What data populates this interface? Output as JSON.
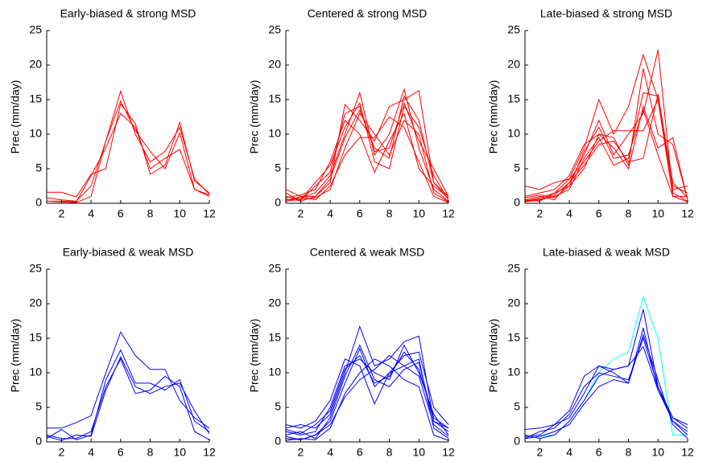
{
  "chart_data": [
    {
      "type": "line",
      "title": "Early-biased & strong MSD",
      "y_label": "Prec (mm/day)",
      "x": [
        1,
        2,
        3,
        4,
        5,
        6,
        7,
        8,
        9,
        10,
        11,
        12
      ],
      "xlim": [
        1,
        12
      ],
      "ylim": [
        0,
        25
      ],
      "xticks": [
        2,
        4,
        6,
        8,
        10,
        12
      ],
      "yticks": [
        0,
        5,
        10,
        15,
        20,
        25
      ],
      "series": [
        {
          "color": "#ff0000",
          "values": [
            1.6,
            1.6,
            0.9,
            4.2,
            5.0,
            14.4,
            11.5,
            4.2,
            5.5,
            11.7,
            3.2,
            1.5
          ]
        },
        {
          "color": "#ff0000",
          "values": [
            0.8,
            0.5,
            0.3,
            2.5,
            9.0,
            16.2,
            10.0,
            6.0,
            7.5,
            11.0,
            3.5,
            1.3
          ]
        },
        {
          "color": "#ff0000",
          "values": [
            0.3,
            0.2,
            0.1,
            1.0,
            9.0,
            14.8,
            10.5,
            7.5,
            5.0,
            10.2,
            2.0,
            1.0
          ]
        },
        {
          "color": "#ff0000",
          "values": [
            0.3,
            0.3,
            0.2,
            4.0,
            8.0,
            13.0,
            11.0,
            5.0,
            6.5,
            7.8,
            2.0,
            1.2
          ]
        }
      ]
    },
    {
      "type": "line",
      "title": "Centered & strong MSD",
      "y_label": "Prec (mm/day)",
      "x": [
        1,
        2,
        3,
        4,
        5,
        6,
        7,
        8,
        9,
        10,
        11,
        12
      ],
      "xlim": [
        1,
        12
      ],
      "ylim": [
        0,
        25
      ],
      "xticks": [
        2,
        4,
        6,
        8,
        10,
        12
      ],
      "yticks": [
        0,
        5,
        10,
        15,
        20,
        25
      ],
      "series": [
        {
          "color": "#ff0000",
          "values": [
            2.0,
            1.0,
            1.0,
            3.0,
            14.3,
            12.0,
            9.0,
            14.0,
            15.0,
            16.3,
            3.0,
            1.0
          ]
        },
        {
          "color": "#ff0000",
          "values": [
            0.5,
            0.8,
            1.5,
            4.0,
            10.0,
            16.0,
            7.0,
            10.0,
            16.5,
            8.0,
            2.0,
            0.3
          ]
        },
        {
          "color": "#ff0000",
          "values": [
            1.0,
            0.5,
            3.0,
            5.5,
            11.0,
            14.5,
            6.0,
            5.0,
            14.0,
            11.0,
            4.0,
            0.5
          ]
        },
        {
          "color": "#ff0000",
          "values": [
            0.3,
            0.6,
            0.8,
            2.0,
            8.0,
            13.0,
            10.0,
            7.0,
            12.0,
            10.0,
            1.5,
            0.2
          ]
        },
        {
          "color": "#ff0000",
          "values": [
            0.8,
            1.2,
            2.0,
            6.0,
            12.0,
            10.0,
            4.5,
            9.0,
            13.0,
            5.0,
            2.5,
            0.8
          ]
        },
        {
          "color": "#ff0000",
          "values": [
            1.5,
            0.3,
            1.0,
            3.5,
            9.5,
            13.5,
            8.0,
            6.5,
            15.5,
            12.0,
            3.0,
            0.6
          ]
        },
        {
          "color": "#ff0000",
          "values": [
            0.2,
            1.0,
            0.5,
            2.5,
            7.0,
            9.5,
            9.5,
            12.5,
            11.0,
            6.0,
            1.0,
            0.1
          ]
        },
        {
          "color": "#ff0000",
          "values": [
            0.6,
            0.4,
            2.5,
            4.5,
            13.0,
            14.0,
            7.5,
            8.0,
            14.5,
            9.0,
            5.0,
            1.0
          ]
        }
      ]
    },
    {
      "type": "line",
      "title": "Late-biased & strong MSD",
      "y_label": "Prec (mm/day)",
      "x": [
        1,
        2,
        3,
        4,
        5,
        6,
        7,
        8,
        9,
        10,
        11,
        12
      ],
      "xlim": [
        1,
        12
      ],
      "ylim": [
        0,
        25
      ],
      "xticks": [
        2,
        4,
        6,
        8,
        10,
        12
      ],
      "yticks": [
        0,
        5,
        10,
        15,
        20,
        25
      ],
      "series": [
        {
          "color": "#ff0000",
          "values": [
            2.5,
            2.0,
            3.0,
            3.5,
            8.0,
            15.0,
            10.0,
            14.0,
            21.5,
            15.0,
            1.0,
            1.0
          ]
        },
        {
          "color": "#ff0000",
          "values": [
            0.3,
            0.8,
            1.5,
            2.5,
            5.0,
            10.0,
            9.5,
            5.5,
            19.5,
            10.0,
            8.5,
            0.5
          ]
        },
        {
          "color": "#ff0000",
          "values": [
            0.5,
            1.0,
            0.5,
            3.0,
            7.0,
            12.0,
            7.0,
            10.0,
            13.0,
            22.2,
            1.5,
            0.3
          ]
        },
        {
          "color": "#ff0000",
          "values": [
            0.2,
            0.5,
            1.0,
            2.0,
            6.5,
            9.5,
            5.5,
            6.5,
            16.0,
            15.5,
            3.0,
            0.8
          ]
        },
        {
          "color": "#ff0000",
          "values": [
            1.0,
            1.5,
            2.0,
            4.0,
            8.5,
            10.0,
            8.0,
            5.0,
            14.0,
            8.0,
            9.5,
            0.5
          ]
        },
        {
          "color": "#ff0000",
          "values": [
            0.5,
            0.3,
            1.5,
            3.5,
            6.0,
            9.0,
            10.5,
            10.5,
            10.5,
            15.0,
            2.0,
            2.5
          ]
        },
        {
          "color": "#ff0000",
          "values": [
            0.8,
            1.2,
            0.8,
            2.5,
            7.5,
            11.0,
            6.5,
            7.0,
            13.5,
            7.0,
            1.0,
            0.2
          ]
        },
        {
          "color": "#ff0000",
          "values": [
            0.3,
            0.6,
            1.2,
            3.0,
            5.5,
            8.5,
            9.0,
            6.0,
            6.5,
            15.8,
            2.5,
            1.5
          ]
        }
      ]
    },
    {
      "type": "line",
      "title": "Early-biased & weak MSD",
      "y_label": "Prec (mm/day)",
      "x": [
        1,
        2,
        3,
        4,
        5,
        6,
        7,
        8,
        9,
        10,
        11,
        12
      ],
      "xlim": [
        1,
        12
      ],
      "ylim": [
        0,
        25
      ],
      "xticks": [
        2,
        4,
        6,
        8,
        10,
        12
      ],
      "yticks": [
        0,
        5,
        10,
        15,
        20,
        25
      ],
      "series": [
        {
          "color": "#0000ff",
          "values": [
            2.0,
            2.0,
            2.8,
            3.8,
            10.0,
            15.9,
            12.5,
            10.5,
            10.5,
            6.0,
            3.5,
            2.0
          ]
        },
        {
          "color": "#0000ff",
          "values": [
            0.5,
            1.8,
            0.3,
            1.0,
            9.0,
            13.3,
            8.5,
            8.5,
            7.5,
            9.0,
            3.0,
            1.5
          ]
        },
        {
          "color": "#0000ff",
          "values": [
            1.0,
            0.5,
            0.5,
            1.5,
            8.0,
            12.0,
            7.0,
            7.5,
            9.5,
            8.0,
            1.5,
            0.3
          ]
        },
        {
          "color": "#0000ff",
          "values": [
            0.8,
            0.2,
            1.0,
            0.8,
            7.5,
            12.3,
            8.0,
            7.0,
            8.0,
            8.5,
            4.5,
            1.2
          ]
        }
      ]
    },
    {
      "type": "line",
      "title": "Centered & weak MSD",
      "y_label": "Prec (mm/day)",
      "x": [
        1,
        2,
        3,
        4,
        5,
        6,
        7,
        8,
        9,
        10,
        11,
        12
      ],
      "xlim": [
        1,
        12
      ],
      "ylim": [
        0,
        25
      ],
      "xticks": [
        2,
        4,
        6,
        8,
        10,
        12
      ],
      "yticks": [
        0,
        5,
        10,
        15,
        20,
        25
      ],
      "series": [
        {
          "color": "#0000ff",
          "values": [
            2.0,
            2.5,
            2.0,
            4.0,
            10.0,
            16.7,
            11.0,
            12.0,
            14.5,
            15.3,
            3.0,
            2.0
          ]
        },
        {
          "color": "#0000ff",
          "values": [
            0.5,
            0.3,
            1.0,
            3.0,
            8.5,
            13.5,
            8.0,
            10.0,
            11.0,
            12.0,
            2.0,
            0.5
          ]
        },
        {
          "color": "#0000ff",
          "values": [
            1.5,
            1.0,
            1.5,
            5.0,
            11.0,
            12.0,
            10.0,
            9.0,
            14.0,
            10.0,
            4.0,
            1.0
          ]
        },
        {
          "color": "#0000ff",
          "values": [
            0.2,
            0.5,
            0.3,
            2.0,
            7.0,
            10.0,
            12.0,
            11.0,
            9.0,
            8.0,
            1.0,
            0.2
          ]
        },
        {
          "color": "#0000ff",
          "values": [
            2.5,
            2.0,
            3.0,
            6.0,
            12.0,
            11.0,
            5.5,
            10.0,
            12.5,
            13.0,
            5.0,
            2.5
          ]
        },
        {
          "color": "#0000ff",
          "values": [
            1.0,
            1.5,
            0.5,
            3.5,
            9.5,
            14.0,
            9.0,
            8.0,
            10.5,
            11.5,
            3.0,
            1.5
          ]
        },
        {
          "color": "#0000ff",
          "values": [
            0.8,
            0.3,
            1.0,
            2.5,
            6.5,
            9.0,
            10.5,
            12.5,
            11.0,
            9.5,
            2.5,
            0.8
          ]
        },
        {
          "color": "#0000ff",
          "values": [
            1.8,
            1.2,
            2.5,
            4.5,
            10.5,
            12.5,
            8.5,
            9.5,
            13.0,
            10.5,
            3.5,
            2.0
          ]
        }
      ]
    },
    {
      "type": "line",
      "title": "Late-biased & weak MSD",
      "y_label": "Prec (mm/day)",
      "x": [
        1,
        2,
        3,
        4,
        5,
        6,
        7,
        8,
        9,
        10,
        11,
        12
      ],
      "xlim": [
        1,
        12
      ],
      "ylim": [
        0,
        25
      ],
      "xticks": [
        2,
        4,
        6,
        8,
        10,
        12
      ],
      "yticks": [
        0,
        5,
        10,
        15,
        20,
        25
      ],
      "series": [
        {
          "color": "#00ffff",
          "values": [
            0.5,
            0.8,
            1.0,
            3.0,
            6.0,
            10.0,
            12.0,
            13.0,
            21.0,
            15.0,
            1.0,
            1.0
          ]
        },
        {
          "color": "#0000ff",
          "values": [
            1.8,
            2.0,
            2.5,
            4.5,
            9.5,
            11.0,
            10.5,
            11.0,
            19.2,
            8.0,
            3.5,
            2.5
          ]
        },
        {
          "color": "#0000ff",
          "values": [
            0.8,
            1.0,
            2.5,
            3.5,
            7.0,
            11.0,
            10.0,
            8.5,
            16.5,
            7.5,
            3.0,
            1.5
          ]
        },
        {
          "color": "#0000ff",
          "values": [
            0.5,
            1.5,
            2.0,
            4.0,
            8.0,
            10.0,
            9.5,
            9.0,
            15.0,
            8.0,
            3.0,
            1.0
          ]
        },
        {
          "color": "#0000ff",
          "values": [
            1.0,
            0.5,
            1.0,
            3.0,
            6.0,
            9.5,
            10.5,
            11.0,
            13.8,
            7.5,
            3.5,
            2.0
          ]
        },
        {
          "color": "#0000ff",
          "values": [
            0.5,
            0.8,
            1.5,
            2.5,
            5.5,
            8.0,
            9.0,
            8.5,
            15.5,
            9.0,
            2.5,
            0.5
          ]
        }
      ]
    }
  ]
}
